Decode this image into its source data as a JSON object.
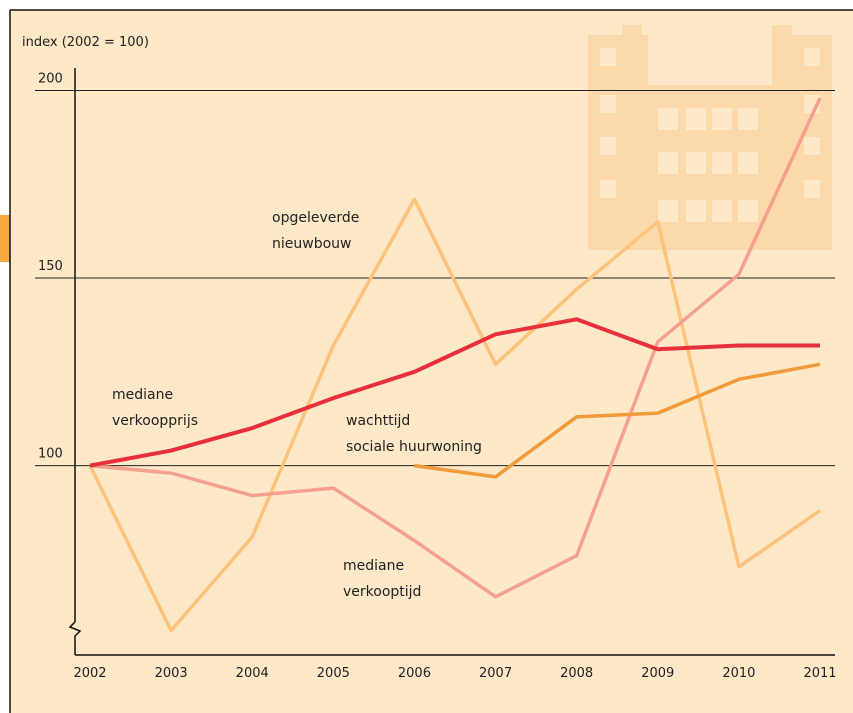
{
  "chart_data": {
    "type": "line",
    "y_label": "index (2002 = 100)",
    "categories": [
      "2002",
      "2003",
      "2004",
      "2005",
      "2006",
      "2007",
      "2008",
      "2009",
      "2010",
      "2011"
    ],
    "ylim": [
      49.5,
      206
    ],
    "yticks": [
      100,
      150,
      200
    ],
    "grid": true,
    "series": [
      {
        "label": [
          "opgeleverde",
          "nieuwbouw"
        ],
        "color": "#fdc27c",
        "values": [
          100,
          56,
          81,
          132,
          171,
          127,
          147,
          165,
          73,
          88
        ]
      },
      {
        "label": [
          "mediane",
          "verkooptijd"
        ],
        "color": "#f5a08e",
        "values": [
          100,
          98,
          92,
          94,
          80,
          65,
          76,
          133,
          151,
          198
        ]
      },
      {
        "label": [
          "wachttijd",
          "sociale huurwoning"
        ],
        "color": "#f09a3a",
        "values": [
          null,
          null,
          null,
          null,
          100,
          97,
          113,
          114,
          123,
          127
        ]
      },
      {
        "label": [
          "mediane",
          "verkoopprijs"
        ],
        "color": "#e8303a",
        "values": [
          100,
          104,
          110,
          118,
          125,
          135,
          139,
          131,
          132,
          132
        ]
      }
    ]
  }
}
